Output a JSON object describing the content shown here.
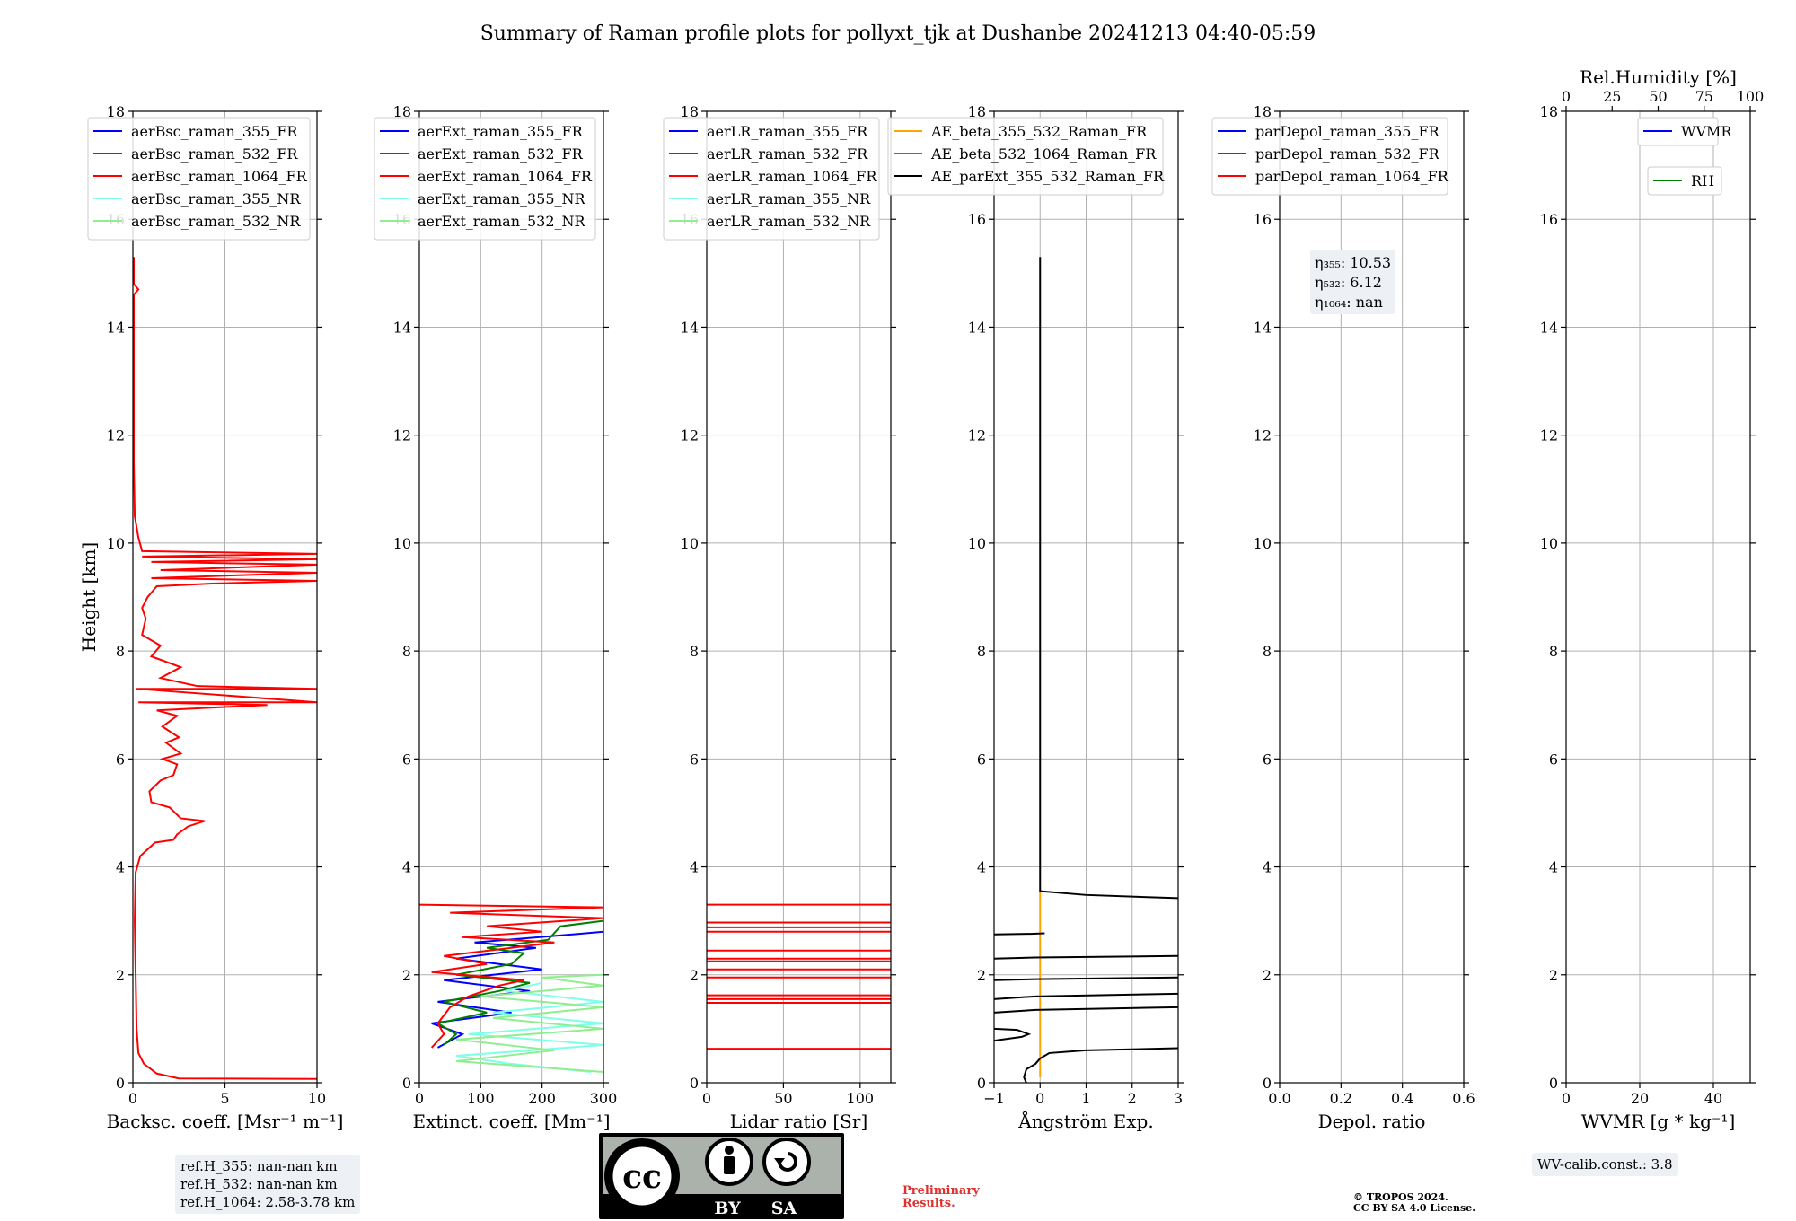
{
  "title": "Summary of Raman profile plots for pollyxt_tjk at Dushanbe 20241213 04:40-05:59",
  "chart_data": [
    {
      "type": "line",
      "ylabel": "Height [km]",
      "xlabel": "Backsc. coeff. [Msr⁻¹ m⁻¹]",
      "xlim": [
        0,
        10
      ],
      "ylim": [
        0,
        18
      ],
      "xticks": [
        "0",
        "5",
        "10"
      ],
      "xtick_values": [
        0,
        5,
        10
      ],
      "yticks": [
        "0",
        "2",
        "4",
        "6",
        "8",
        "10",
        "12",
        "14",
        "16",
        "18"
      ],
      "grid": true,
      "legend_loc": "top-left",
      "series": [
        {
          "name": "aerBsc_raman_355_FR",
          "color": "#0000ff",
          "points": []
        },
        {
          "name": "aerBsc_raman_532_FR",
          "color": "#008000",
          "points": []
        },
        {
          "name": "aerBsc_raman_1064_FR",
          "color": "#ff0000",
          "points": [
            [
              10,
              0.07
            ],
            [
              2.5,
              0.08
            ],
            [
              1.3,
              0.17
            ],
            [
              0.6,
              0.35
            ],
            [
              0.3,
              0.55
            ],
            [
              0.2,
              1.0
            ],
            [
              0.15,
              2.0
            ],
            [
              0.1,
              3.0
            ],
            [
              0.15,
              3.9
            ],
            [
              0.4,
              4.2
            ],
            [
              1.2,
              4.45
            ],
            [
              2.2,
              4.5
            ],
            [
              2.4,
              4.6
            ],
            [
              3.0,
              4.75
            ],
            [
              3.9,
              4.85
            ],
            [
              2.6,
              4.9
            ],
            [
              2.3,
              5.0
            ],
            [
              2.0,
              5.1
            ],
            [
              1.0,
              5.2
            ],
            [
              0.9,
              5.4
            ],
            [
              1.5,
              5.6
            ],
            [
              2.2,
              5.7
            ],
            [
              2.4,
              5.9
            ],
            [
              1.6,
              6.0
            ],
            [
              2.6,
              6.1
            ],
            [
              1.8,
              6.3
            ],
            [
              2.5,
              6.4
            ],
            [
              1.6,
              6.6
            ],
            [
              2.4,
              6.8
            ],
            [
              1.3,
              6.9
            ],
            [
              7.3,
              7.0
            ],
            [
              0.3,
              7.05
            ],
            [
              10,
              7.05
            ],
            [
              0.2,
              7.3
            ],
            [
              10,
              7.3
            ],
            [
              3.5,
              7.35
            ],
            [
              1.5,
              7.5
            ],
            [
              2.6,
              7.7
            ],
            [
              1.0,
              7.9
            ],
            [
              1.5,
              8.1
            ],
            [
              0.5,
              8.3
            ],
            [
              0.7,
              8.6
            ],
            [
              0.5,
              8.8
            ],
            [
              0.8,
              9.0
            ],
            [
              1.3,
              9.2
            ],
            [
              4.3,
              9.25
            ],
            [
              10,
              9.3
            ],
            [
              1.0,
              9.35
            ],
            [
              10,
              9.45
            ],
            [
              1.5,
              9.5
            ],
            [
              10,
              9.6
            ],
            [
              1.0,
              9.65
            ],
            [
              10,
              9.7
            ],
            [
              0.5,
              9.75
            ],
            [
              10,
              9.8
            ],
            [
              0.5,
              9.85
            ],
            [
              0.3,
              10.1
            ],
            [
              0.1,
              10.5
            ],
            [
              0.05,
              11.5
            ],
            [
              0.05,
              12.6
            ],
            [
              0.05,
              13.5
            ],
            [
              0.05,
              14.6
            ],
            [
              0.3,
              14.7
            ],
            [
              0.05,
              14.8
            ],
            [
              0.05,
              15.3
            ]
          ]
        },
        {
          "name": "aerBsc_raman_355_NR",
          "color": "#7fffe6",
          "points": []
        },
        {
          "name": "aerBsc_raman_532_NR",
          "color": "#90ee90",
          "points": []
        }
      ]
    },
    {
      "type": "line",
      "xlabel": "Extinct. coeff. [Mm⁻¹]",
      "xlim": [
        0,
        300
      ],
      "ylim": [
        0,
        18
      ],
      "xticks": [
        "0",
        "100",
        "200",
        "300"
      ],
      "xtick_values": [
        0,
        100,
        200,
        300
      ],
      "yticks": [
        "0",
        "2",
        "4",
        "6",
        "8",
        "10",
        "12",
        "14",
        "16",
        "18"
      ],
      "grid": true,
      "legend_loc": "top-left",
      "series": [
        {
          "name": "aerExt_raman_355_FR",
          "color": "#0000ff",
          "points": [
            [
              30,
              0.65
            ],
            [
              70,
              0.9
            ],
            [
              20,
              1.1
            ],
            [
              150,
              1.3
            ],
            [
              30,
              1.5
            ],
            [
              180,
              1.7
            ],
            [
              40,
              1.9
            ],
            [
              200,
              2.1
            ],
            [
              60,
              2.3
            ],
            [
              190,
              2.5
            ],
            [
              90,
              2.6
            ],
            [
              250,
              2.75
            ],
            [
              300,
              2.8
            ]
          ]
        },
        {
          "name": "aerExt_raman_532_FR",
          "color": "#008000",
          "points": [
            [
              40,
              0.7
            ],
            [
              60,
              0.9
            ],
            [
              30,
              1.1
            ],
            [
              110,
              1.3
            ],
            [
              40,
              1.5
            ],
            [
              130,
              1.7
            ],
            [
              180,
              1.85
            ],
            [
              60,
              2.0
            ],
            [
              150,
              2.2
            ],
            [
              170,
              2.4
            ],
            [
              110,
              2.5
            ],
            [
              210,
              2.65
            ],
            [
              230,
              2.9
            ],
            [
              300,
              3.0
            ]
          ]
        },
        {
          "name": "aerExt_raman_1064_FR",
          "color": "#ff0000",
          "points": [
            [
              20,
              0.65
            ],
            [
              40,
              0.9
            ],
            [
              30,
              1.1
            ],
            [
              50,
              1.4
            ],
            [
              80,
              1.6
            ],
            [
              130,
              1.8
            ],
            [
              170,
              1.9
            ],
            [
              20,
              2.05
            ],
            [
              110,
              2.2
            ],
            [
              40,
              2.35
            ],
            [
              150,
              2.5
            ],
            [
              220,
              2.6
            ],
            [
              70,
              2.7
            ],
            [
              200,
              2.8
            ],
            [
              110,
              2.9
            ],
            [
              300,
              3.05
            ],
            [
              50,
              3.15
            ],
            [
              300,
              3.25
            ],
            [
              0,
              3.3
            ]
          ]
        },
        {
          "name": "aerExt_raman_355_NR",
          "color": "#7fffe6",
          "points": [
            [
              280,
              0.2
            ],
            [
              150,
              0.35
            ],
            [
              60,
              0.5
            ],
            [
              300,
              0.7
            ],
            [
              80,
              0.9
            ],
            [
              300,
              1.1
            ],
            [
              120,
              1.3
            ],
            [
              300,
              1.5
            ],
            [
              140,
              1.7
            ],
            [
              200,
              1.85
            ]
          ]
        },
        {
          "name": "aerExt_raman_532_NR",
          "color": "#90ee90",
          "points": [
            [
              300,
              0.2
            ],
            [
              60,
              0.4
            ],
            [
              220,
              0.6
            ],
            [
              60,
              0.8
            ],
            [
              300,
              1.0
            ],
            [
              120,
              1.2
            ],
            [
              300,
              1.4
            ],
            [
              100,
              1.6
            ],
            [
              300,
              1.8
            ],
            [
              200,
              1.95
            ],
            [
              300,
              2.0
            ]
          ]
        }
      ]
    },
    {
      "type": "line",
      "xlabel": "Lidar ratio [Sr]",
      "xlim": [
        0,
        120
      ],
      "ylim": [
        0,
        18
      ],
      "xticks": [
        "0",
        "50",
        "100"
      ],
      "xtick_values": [
        0,
        50,
        100
      ],
      "yticks": [
        "0",
        "2",
        "4",
        "6",
        "8",
        "10",
        "12",
        "14",
        "16",
        "18"
      ],
      "grid": true,
      "legend_loc": "top-left",
      "series": [
        {
          "name": "aerLR_raman_355_FR",
          "color": "#0000ff",
          "points": []
        },
        {
          "name": "aerLR_raman_532_FR",
          "color": "#008000",
          "points": []
        },
        {
          "name": "aerLR_raman_1064_FR",
          "color": "#ff0000",
          "hlines": [
            0.63,
            1.48,
            1.55,
            1.62,
            1.95,
            2.1,
            2.25,
            2.3,
            2.45,
            2.8,
            2.88,
            2.97,
            3.3
          ]
        },
        {
          "name": "aerLR_raman_355_NR",
          "color": "#7fffe6",
          "points": []
        },
        {
          "name": "aerLR_raman_532_NR",
          "color": "#90ee90",
          "points": []
        }
      ]
    },
    {
      "type": "line",
      "xlabel": "Ångström Exp.",
      "xlim": [
        -1,
        3
      ],
      "ylim": [
        0,
        18
      ],
      "xticks": [
        "−1",
        "0",
        "1",
        "2",
        "3"
      ],
      "xtick_values": [
        -1,
        0,
        1,
        2,
        3
      ],
      "yticks": [
        "0",
        "2",
        "4",
        "6",
        "8",
        "10",
        "12",
        "14",
        "16",
        "18"
      ],
      "grid": true,
      "legend_loc": "top-right",
      "series": [
        {
          "name": "AE_beta_355_532_Raman_FR",
          "color": "#ffa500",
          "points": [
            [
              0,
              0.1
            ],
            [
              0,
              3.55
            ]
          ]
        },
        {
          "name": "AE_beta_532_1064_Raman_FR",
          "color": "#ff00ff",
          "points": []
        },
        {
          "name": "AE_parExt_355_532_Raman_FR",
          "color": "#000000",
          "segments": [
            [
              [
                -0.3,
                0.0
              ],
              [
                -0.35,
                0.1
              ],
              [
                -0.3,
                0.25
              ],
              [
                -0.1,
                0.35
              ],
              [
                0.0,
                0.45
              ],
              [
                0.2,
                0.55
              ],
              [
                1.0,
                0.6
              ],
              [
                3.0,
                0.64
              ]
            ],
            [
              [
                -1.0,
                0.78
              ],
              [
                -0.4,
                0.85
              ],
              [
                -0.25,
                0.9
              ],
              [
                -0.5,
                0.98
              ],
              [
                -1.0,
                1.0
              ]
            ],
            [
              [
                3.0,
                1.4
              ],
              [
                -0.1,
                1.35
              ],
              [
                -1.0,
                1.3
              ]
            ],
            [
              [
                3.0,
                1.65
              ],
              [
                -0.1,
                1.6
              ],
              [
                -1.0,
                1.55
              ]
            ],
            [
              [
                3.0,
                1.95
              ],
              [
                -0.1,
                1.92
              ],
              [
                -1.0,
                1.9
              ]
            ],
            [
              [
                3.0,
                2.35
              ],
              [
                -0.1,
                2.32
              ],
              [
                -1.0,
                2.3
              ]
            ],
            [
              [
                -1.0,
                2.75
              ],
              [
                -0.2,
                2.76
              ],
              [
                0.1,
                2.77
              ]
            ],
            [
              [
                3.0,
                3.42
              ],
              [
                1.0,
                3.48
              ],
              [
                0.0,
                3.55
              ],
              [
                0.0,
                15.3
              ]
            ]
          ]
        }
      ]
    },
    {
      "type": "line",
      "xlabel": "Depol. ratio",
      "xlim": [
        0,
        0.6
      ],
      "ylim": [
        0,
        18
      ],
      "xticks": [
        "0.0",
        "0.2",
        "0.4",
        "0.6"
      ],
      "xtick_values": [
        0,
        0.2,
        0.4,
        0.6
      ],
      "yticks": [
        "0",
        "2",
        "4",
        "6",
        "8",
        "10",
        "12",
        "14",
        "16",
        "18"
      ],
      "grid": true,
      "legend_loc": "top-left",
      "series": [
        {
          "name": "parDepol_raman_355_FR",
          "color": "#0000ff",
          "points": []
        },
        {
          "name": "parDepol_raman_532_FR",
          "color": "#008000",
          "points": []
        },
        {
          "name": "parDepol_raman_1064_FR",
          "color": "#ff0000",
          "points": []
        }
      ],
      "annotation": [
        "η₃₅₅: 10.53",
        "η₅₃₂: 6.12",
        "η₁₀₆₄: nan"
      ]
    },
    {
      "type": "line",
      "xlabel": "WVMR [g * kg⁻¹]",
      "xlabel_top": "Rel.Humidity [%]",
      "xlim": [
        0,
        50
      ],
      "ylim": [
        0,
        18
      ],
      "xticks": [
        "0",
        "20",
        "40"
      ],
      "xtick_values": [
        0,
        20,
        40
      ],
      "xlim_top": [
        0,
        100
      ],
      "xticks_top": [
        "0",
        "25",
        "50",
        "75",
        "100"
      ],
      "xtick_values_top": [
        0,
        25,
        50,
        75,
        100
      ],
      "yticks": [
        "0",
        "2",
        "4",
        "6",
        "8",
        "10",
        "12",
        "14",
        "16",
        "18"
      ],
      "grid": true,
      "legend_loc": "top-right",
      "series": [
        {
          "name": "WVMR",
          "color": "#0000ff",
          "points": []
        },
        {
          "name": "RH",
          "color": "#008000",
          "points": []
        }
      ]
    }
  ],
  "info": {
    "refh_355": "ref.H_355: nan-nan km",
    "refh_532": "ref.H_532: nan-nan km",
    "refh_1064": "ref.H_1064: 2.58-3.78 km",
    "wv_calib": "WV-calib.const.: 3.8",
    "prelim_1": "Preliminary",
    "prelim_2": "Results.",
    "copyright_1": "© TROPOS 2024.",
    "copyright_2": "CC BY SA 4.0 License.",
    "license_by": "BY",
    "license_sa": "SA",
    "license_cc": "cc"
  }
}
